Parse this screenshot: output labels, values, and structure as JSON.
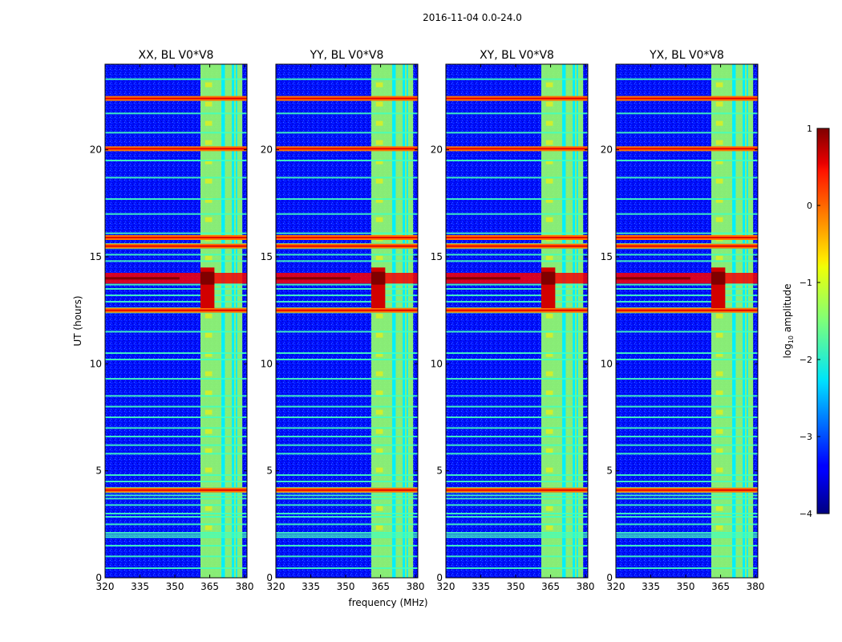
{
  "suptitle": "2016-11-04 0.0-24.0",
  "chart_data": {
    "type": "heatmap",
    "xlabel": "frequency (MHz)",
    "ylabel": "UT (hours)",
    "xlim": [
      320,
      381
    ],
    "ylim": [
      0,
      24
    ],
    "x_ticks": [
      320,
      335,
      350,
      365,
      380
    ],
    "y_ticks": [
      0,
      5,
      10,
      15,
      20
    ],
    "panels": [
      {
        "title": "XX, BL V0*V8",
        "pol": "XX"
      },
      {
        "title": "YY, BL V0*V8",
        "pol": "YY"
      },
      {
        "title": "XY, BL V0*V8",
        "pol": "XY"
      },
      {
        "title": "YX, BL V0*V8",
        "pol": "YX"
      }
    ],
    "colorbar": {
      "label": "log10 amplitude",
      "label_base": "log",
      "label_sub": "10",
      "label_rest": " amplitude",
      "range": [
        -4,
        1
      ],
      "ticks": [
        -4,
        -3,
        -2,
        -1,
        0,
        1
      ],
      "colormap": "jet"
    },
    "background_level": -3.3,
    "bright_band": {
      "freq_range": [
        361,
        379
      ],
      "level": -1.4
    },
    "gaps_freq": [
      [
        370,
        371.5
      ],
      [
        374.5,
        375.5
      ],
      [
        376.2,
        376.8
      ]
    ],
    "rfi_hours": [
      0.45,
      1.0,
      1.5,
      1.9,
      2.0,
      2.1,
      2.5,
      2.85,
      3.0,
      3.4,
      3.7,
      3.85,
      4.0,
      4.1,
      4.2,
      4.5,
      4.8,
      5.8,
      6.2,
      6.6,
      7.0,
      7.5,
      8.0,
      8.5,
      9.3,
      10.2,
      10.5,
      11.5,
      12.4,
      12.6,
      12.9,
      13.2,
      13.5,
      13.7,
      14.8,
      15.1,
      15.4,
      15.6,
      15.9,
      16.1,
      17.0,
      17.7,
      18.7,
      19.5,
      20.0,
      20.1,
      20.8,
      21.7,
      22.4,
      23.3
    ],
    "rfi_strong_hours": [
      4.1,
      12.5,
      15.5,
      15.9,
      20.05,
      22.4
    ],
    "saturated_event": {
      "hours": [
        12.6,
        14.5
      ],
      "peak_hour": 14.0,
      "freq_range": [
        361,
        367
      ]
    }
  }
}
